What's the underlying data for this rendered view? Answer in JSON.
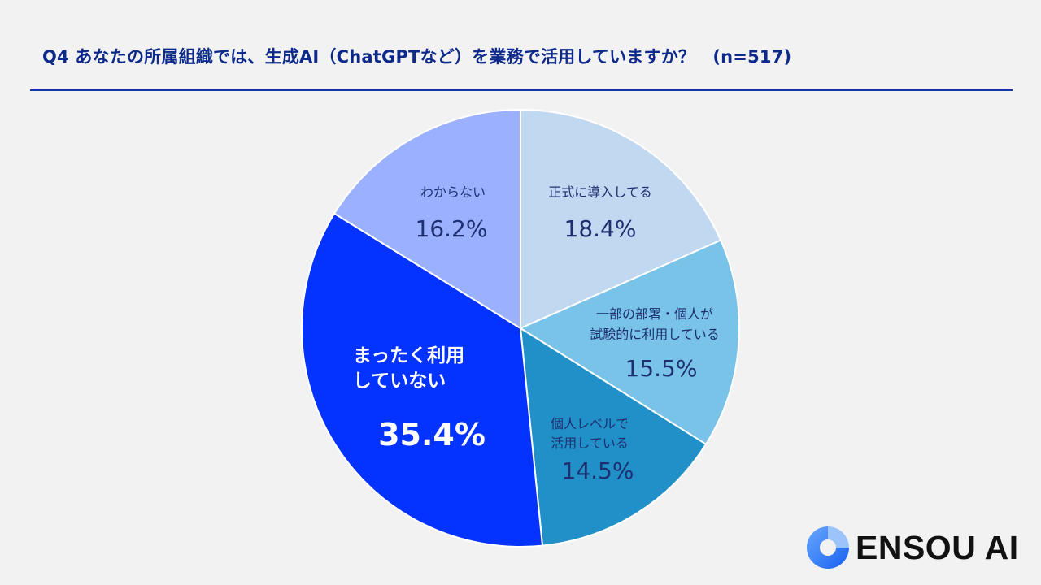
{
  "chart_data": {
    "type": "pie",
    "title": "Q4 あなたの所属組織では、生成AI（ChatGPTなど）を業務で活用していますか？　(n=517)",
    "start": "top",
    "direction": "clockwise",
    "slices": [
      {
        "label": "正式に導入してる",
        "lines": [
          "正式に導入してる"
        ],
        "value": 18.4,
        "value_label": "18.4%",
        "color": "#c1d8f1"
      },
      {
        "label": "一部の部署・個人が試験的に利用している",
        "lines": [
          "一部の部署・個人が",
          "試験的に利用している"
        ],
        "value": 15.5,
        "value_label": "15.5%",
        "color": "#79c3e8"
      },
      {
        "label": "個人レベルで活用している",
        "lines": [
          "個人レベルで",
          "活用している"
        ],
        "value": 14.5,
        "value_label": "14.5%",
        "color": "#2190c8"
      },
      {
        "label": "まったく利用していない",
        "lines": [
          "まったく利用",
          "していない"
        ],
        "value": 35.4,
        "value_label": "35.4%",
        "color": "#0432ff"
      },
      {
        "label": "わからない",
        "lines": [
          "わからない"
        ],
        "value": 16.2,
        "value_label": "16.2%",
        "color": "#9bb0ff"
      }
    ]
  },
  "logo": {
    "text": "ENSOU AI",
    "color": "#1f6ff0"
  }
}
